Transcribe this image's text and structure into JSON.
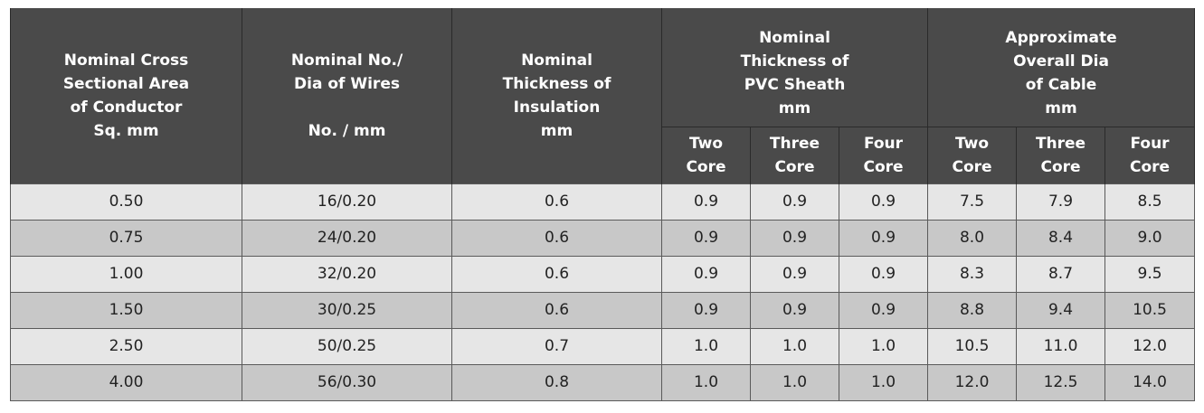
{
  "table": {
    "headers": {
      "area": "Nominal Cross\nSectional Area\nof Conductor\nSq. mm",
      "wires": "Nominal No./\nDia of Wires\n\nNo. / mm",
      "insulation": "Nominal\nThickness of\nInsulation\nmm",
      "sheath": "Nominal\nThickness of\nPVC Sheath\nmm",
      "overall": "Approximate\nOverall Dia\nof Cable\nmm"
    },
    "sub_headers": {
      "sheath": [
        "Two\nCore",
        "Three\nCore",
        "Four\nCore"
      ],
      "overall": [
        "Two\nCore",
        "Three\nCore",
        "Four\nCore"
      ]
    },
    "rows": [
      [
        "0.50",
        "16/0.20",
        "0.6",
        "0.9",
        "0.9",
        "0.9",
        "7.5",
        "7.9",
        "8.5"
      ],
      [
        "0.75",
        "24/0.20",
        "0.6",
        "0.9",
        "0.9",
        "0.9",
        "8.0",
        "8.4",
        "9.0"
      ],
      [
        "1.00",
        "32/0.20",
        "0.6",
        "0.9",
        "0.9",
        "0.9",
        "8.3",
        "8.7",
        "9.5"
      ],
      [
        "1.50",
        "30/0.25",
        "0.6",
        "0.9",
        "0.9",
        "0.9",
        "8.8",
        "9.4",
        "10.5"
      ],
      [
        "2.50",
        "50/0.25",
        "0.7",
        "1.0",
        "1.0",
        "1.0",
        "10.5",
        "11.0",
        "12.0"
      ],
      [
        "4.00",
        "56/0.30",
        "0.8",
        "1.0",
        "1.0",
        "1.0",
        "12.0",
        "12.5",
        "14.0"
      ]
    ]
  }
}
